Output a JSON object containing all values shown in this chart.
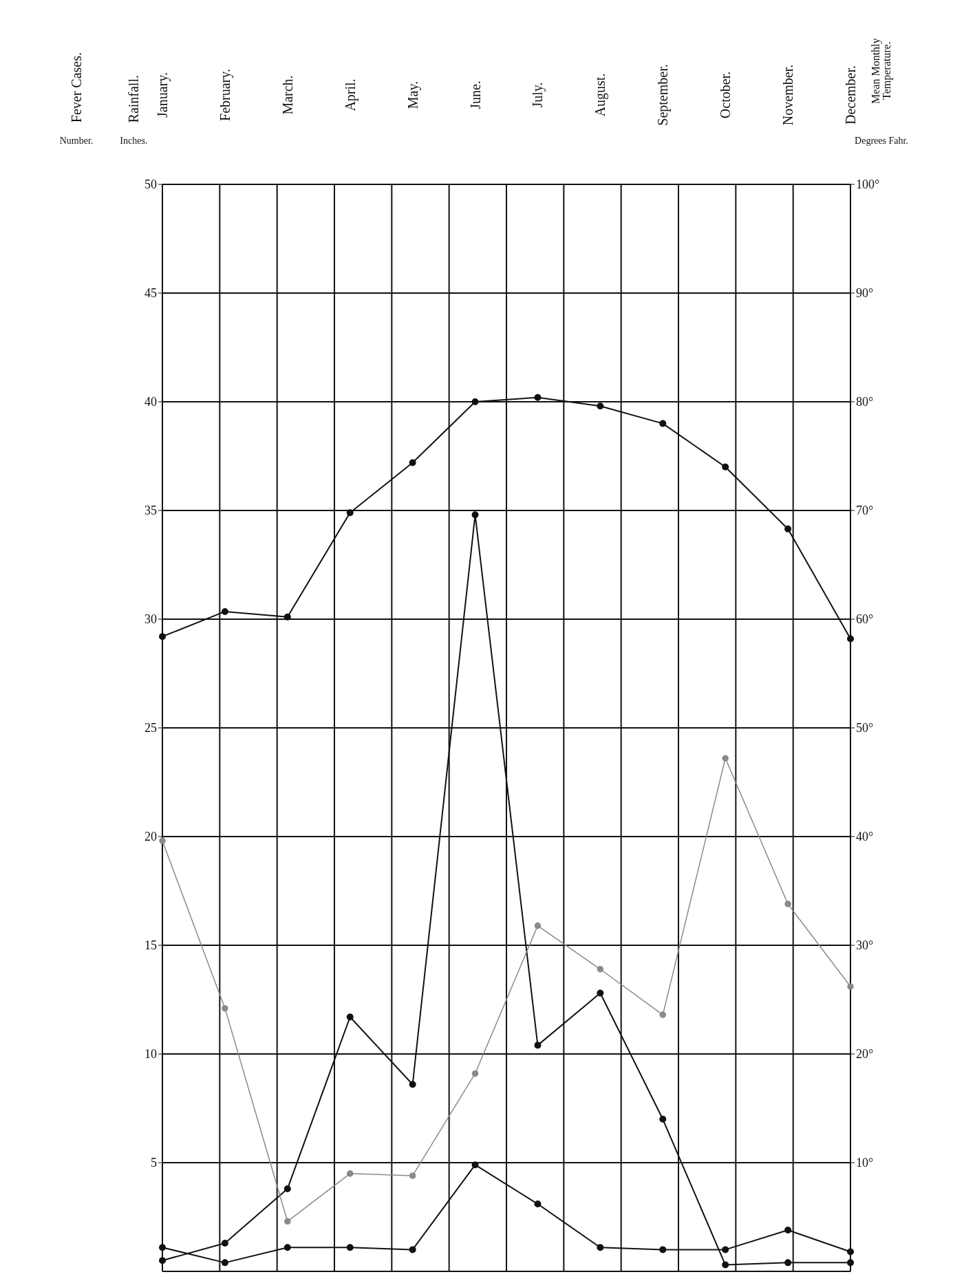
{
  "chart_data": {
    "type": "line",
    "ylabel": "Fever Cases.",
    "annotations": [
      "Number.",
      "Rainfall.",
      "Inches.",
      "Degrees Fahr.",
      "Mean Monthly Temperature."
    ],
    "categories": [
      "January.",
      "February.",
      "March.",
      "April.",
      "May.",
      "June.",
      "July.",
      "August.",
      "September.",
      "October.",
      "November.",
      "December."
    ],
    "series": [
      {
        "color": "#111111",
        "values": [
          0.5,
          1.3,
          3.8,
          11.7,
          8.6,
          34.8,
          10.4,
          12.8,
          7.0,
          0.3,
          0.4,
          0.4
        ]
      },
      {
        "color": "#111111",
        "values": [
          1.1,
          0.4,
          1.1,
          1.1,
          1.0,
          4.9,
          3.1,
          1.1,
          1.0,
          1.0,
          1.9,
          0.9
        ]
      },
      {
        "color": "#8a8a8a",
        "values": [
          19.8,
          12.1,
          2.3,
          4.5,
          4.4,
          9.1,
          15.9,
          13.9,
          11.8,
          23.6,
          16.9,
          13.1
        ]
      },
      {
        "color": "#111111",
        "axis": "y2",
        "values": [
          58.4,
          60.7,
          60.2,
          69.8,
          74.4,
          80,
          80.4,
          79.6,
          78,
          74,
          68.3,
          58.2
        ]
      }
    ],
    "ylim": [
      0,
      50
    ],
    "yticks": [
      5,
      10,
      15,
      20,
      25,
      30,
      35,
      40,
      45,
      50
    ],
    "y2lim": [
      0,
      100
    ],
    "y2ticks": [
      {
        "value": 10,
        "label": "10°"
      },
      {
        "value": 20,
        "label": "20°"
      },
      {
        "value": 30,
        "label": "30°"
      },
      {
        "value": 40,
        "label": "40°"
      },
      {
        "value": 50,
        "label": "50°"
      },
      {
        "value": 60,
        "label": "60°"
      },
      {
        "value": 70,
        "label": "70°"
      },
      {
        "value": 80,
        "label": "80°"
      },
      {
        "value": 90,
        "label": "90°"
      },
      {
        "value": 100,
        "label": "100°"
      }
    ],
    "grid": true,
    "legend": false,
    "marker": "circle",
    "line_style": "solid"
  }
}
